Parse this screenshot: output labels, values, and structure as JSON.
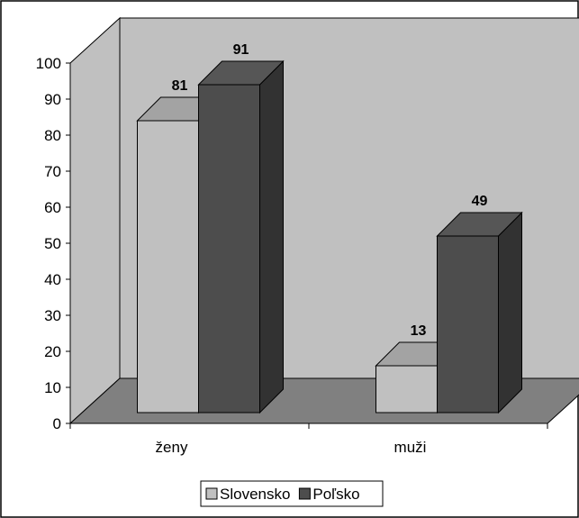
{
  "chart_data": {
    "type": "bar",
    "three_d": true,
    "categories": [
      "ženy",
      "muži"
    ],
    "series": [
      {
        "name": "Slovensko",
        "values": [
          81,
          13
        ],
        "color": "#c0c0c0"
      },
      {
        "name": "Poľsko",
        "values": [
          91,
          49
        ],
        "color": "#4d4d4d"
      }
    ],
    "ylim": [
      0,
      100
    ],
    "y_ticks": [
      0,
      10,
      20,
      30,
      40,
      50,
      60,
      70,
      80,
      90,
      100
    ],
    "data_labels": true,
    "grid": false,
    "legend": "bottom-center",
    "wall_color": "#c0c0c0",
    "floor_color": "#808080"
  }
}
